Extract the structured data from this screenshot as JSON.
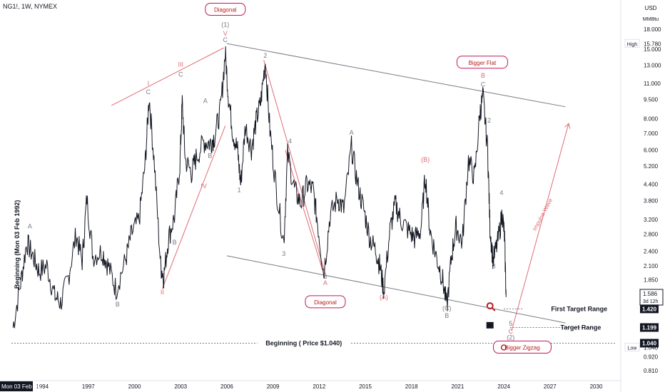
{
  "header": {
    "symbol": "NG1!, 1W, NYMEX"
  },
  "currency": {
    "unit": "USD",
    "subunit": "MMBtu"
  },
  "chart_data": {
    "type": "line",
    "scale": "log",
    "ylim": [
      0.75,
      22
    ],
    "xlim": [
      1992.0,
      2031.6
    ],
    "y_ticks": [
      18.0,
      15.0,
      13.0,
      11.0,
      9.5,
      8.0,
      7.0,
      6.0,
      5.2,
      4.4,
      3.8,
      3.2,
      2.8,
      2.4,
      2.1,
      1.85,
      0.92,
      0.81
    ],
    "y_tick_labels": [
      "18.000",
      "15.000",
      "13.000",
      "11.000",
      "9.500",
      "8.000",
      "7.000",
      "6.000",
      "5.200",
      "4.400",
      "3.800",
      "3.200",
      "2.800",
      "2.400",
      "2.100",
      "1.850",
      "0.920",
      "0.810"
    ],
    "x_ticks": [
      1994,
      1997,
      2000,
      2003,
      2006,
      2009,
      2012,
      2015,
      2018,
      2021,
      2024,
      2027,
      2030
    ],
    "x_tick_labels": [
      "1994",
      "1997",
      "2000",
      "2003",
      "2006",
      "2009",
      "2012",
      "2015",
      "2018",
      "2021",
      "2024",
      "2027",
      "2030"
    ],
    "x_start_label": "Mon 03 Feb '92",
    "price_path": [
      [
        1992.1,
        1.2
      ],
      [
        1992.6,
        1.8
      ],
      [
        1993.0,
        2.6
      ],
      [
        1993.4,
        2.3
      ],
      [
        1993.8,
        2.0
      ],
      [
        1994.3,
        2.1
      ],
      [
        1994.8,
        1.6
      ],
      [
        1995.2,
        1.5
      ],
      [
        1995.7,
        1.9
      ],
      [
        1996.2,
        2.8
      ],
      [
        1996.6,
        2.2
      ],
      [
        1996.9,
        3.9
      ],
      [
        1997.3,
        2.3
      ],
      [
        1997.9,
        2.4
      ],
      [
        1998.3,
        2.1
      ],
      [
        1998.8,
        1.7
      ],
      [
        1999.4,
        2.2
      ],
      [
        1999.8,
        2.8
      ],
      [
        2000.3,
        3.2
      ],
      [
        2000.7,
        5.4
      ],
      [
        2000.95,
        9.8
      ],
      [
        2001.3,
        5.2
      ],
      [
        2001.7,
        2.1
      ],
      [
        2001.9,
        1.9
      ],
      [
        2002.2,
        2.7
      ],
      [
        2002.6,
        3.3
      ],
      [
        2002.95,
        5.3
      ],
      [
        2003.1,
        9.3
      ],
      [
        2003.3,
        5.5
      ],
      [
        2003.7,
        4.9
      ],
      [
        2004.0,
        5.6
      ],
      [
        2004.5,
        6.5
      ],
      [
        2004.9,
        6.4
      ],
      [
        2005.2,
        6.8
      ],
      [
        2005.6,
        8.8
      ],
      [
        2005.9,
        14.6
      ],
      [
        2006.1,
        9.8
      ],
      [
        2006.4,
        7.0
      ],
      [
        2006.7,
        6.0
      ],
      [
        2006.9,
        4.4
      ],
      [
        2007.2,
        7.5
      ],
      [
        2007.6,
        6.1
      ],
      [
        2007.9,
        7.8
      ],
      [
        2008.2,
        9.3
      ],
      [
        2008.5,
        13.5
      ],
      [
        2008.8,
        7.2
      ],
      [
        2009.2,
        4.3
      ],
      [
        2009.7,
        2.6
      ],
      [
        2009.95,
        5.8
      ],
      [
        2010.4,
        4.2
      ],
      [
        2010.8,
        3.7
      ],
      [
        2011.2,
        4.4
      ],
      [
        2011.6,
        4.2
      ],
      [
        2011.9,
        3.1
      ],
      [
        2012.3,
        1.95
      ],
      [
        2012.7,
        3.3
      ],
      [
        2013.2,
        3.9
      ],
      [
        2013.6,
        3.5
      ],
      [
        2014.1,
        6.2
      ],
      [
        2014.5,
        4.4
      ],
      [
        2014.9,
        3.5
      ],
      [
        2015.3,
        2.7
      ],
      [
        2015.7,
        2.4
      ],
      [
        2015.95,
        2.1
      ],
      [
        2016.2,
        1.68
      ],
      [
        2016.6,
        2.9
      ],
      [
        2016.95,
        3.7
      ],
      [
        2017.3,
        3.2
      ],
      [
        2017.8,
        2.9
      ],
      [
        2018.2,
        2.7
      ],
      [
        2018.6,
        2.9
      ],
      [
        2018.9,
        4.8
      ],
      [
        2019.2,
        2.9
      ],
      [
        2019.6,
        2.3
      ],
      [
        2020.0,
        1.9
      ],
      [
        2020.3,
        1.45
      ],
      [
        2020.6,
        2.3
      ],
      [
        2020.9,
        3.0
      ],
      [
        2021.3,
        2.6
      ],
      [
        2021.7,
        5.5
      ],
      [
        2022.1,
        4.7
      ],
      [
        2022.45,
        8.5
      ],
      [
        2022.65,
        9.8
      ],
      [
        2022.95,
        6.0
      ],
      [
        2023.1,
        3.0
      ],
      [
        2023.3,
        2.2
      ],
      [
        2023.6,
        2.6
      ],
      [
        2023.9,
        3.4
      ],
      [
        2024.05,
        2.7
      ],
      [
        2024.15,
        1.58
      ]
    ],
    "overlay_lines": [
      {
        "from": [
          1998.5,
          9.0
        ],
        "to": [
          2005.8,
          15.2
        ],
        "color": "#e06c75"
      },
      {
        "from": [
          2001.8,
          1.7
        ],
        "to": [
          2005.9,
          7.5
        ],
        "color": "#e06c75"
      },
      {
        "from": [
          2008.4,
          13.6
        ],
        "to": [
          2012.4,
          1.95
        ],
        "color": "#e06c75"
      },
      {
        "from": [
          2009.8,
          6.0
        ],
        "to": [
          2012.3,
          1.95
        ],
        "color": "#e06c75"
      },
      {
        "from": [
          2024.5,
          1.16
        ],
        "to": [
          2028.2,
          7.6
        ],
        "color": "#e06c75",
        "arrow": true
      },
      {
        "from": [
          2006.0,
          15.8
        ],
        "to": [
          2028.0,
          8.9
        ],
        "color": "#787b86"
      },
      {
        "from": [
          2006.0,
          2.3
        ],
        "to": [
          2028.0,
          1.25
        ],
        "color": "#787b86"
      },
      {
        "from": [
          2024.0,
          1.42
        ],
        "to": [
          2025.3,
          1.42
        ],
        "color": "#787b86",
        "dash": true
      },
      {
        "from": [
          2024.4,
          1.199
        ],
        "to": [
          2029.8,
          1.199
        ],
        "color": "#787b86",
        "dash": true
      },
      {
        "from": [
          1992.0,
          1.04
        ],
        "to": [
          2031.3,
          1.04
        ],
        "color": "#787b86",
        "dash": true
      }
    ],
    "wave_labels": [
      {
        "t": "A",
        "x": 1993.2,
        "y": 2.95,
        "c": "#787b86"
      },
      {
        "t": "B",
        "x": 1998.9,
        "y": 1.45,
        "c": "#787b86"
      },
      {
        "t": "I",
        "x": 2000.9,
        "y": 10.8,
        "c": "#e06c75"
      },
      {
        "t": "C",
        "x": 2000.9,
        "y": 10.0,
        "c": "#787b86"
      },
      {
        "t": "II",
        "x": 2001.8,
        "y": 1.62,
        "c": "#e06c75"
      },
      {
        "t": "III",
        "x": 2003.0,
        "y": 12.8,
        "c": "#e06c75"
      },
      {
        "t": "C",
        "x": 2003.0,
        "y": 11.7,
        "c": "#787b86"
      },
      {
        "t": "B",
        "x": 2002.6,
        "y": 2.55,
        "c": "#787b86"
      },
      {
        "t": "A",
        "x": 2004.6,
        "y": 9.2,
        "c": "#787b86"
      },
      {
        "t": "B",
        "x": 2004.9,
        "y": 5.6,
        "c": "#787b86"
      },
      {
        "t": "IV",
        "x": 2004.5,
        "y": 4.25,
        "c": "#e06c75"
      },
      {
        "t": "(1)",
        "x": 2005.9,
        "y": 18.4,
        "c": "#787b86"
      },
      {
        "t": "V",
        "x": 2005.9,
        "y": 17.0,
        "c": "#e06c75"
      },
      {
        "t": "C",
        "x": 2005.9,
        "y": 16.0,
        "c": "#787b86"
      },
      {
        "t": "1",
        "x": 2006.8,
        "y": 4.1,
        "c": "#787b86"
      },
      {
        "t": "2",
        "x": 2008.5,
        "y": 13.9,
        "c": "#787b86"
      },
      {
        "t": "3",
        "x": 2009.7,
        "y": 2.3,
        "c": "#787b86"
      },
      {
        "t": "4",
        "x": 2010.1,
        "y": 6.4,
        "c": "#787b86"
      },
      {
        "t": "5",
        "x": 2012.4,
        "y": 1.87,
        "c": "#787b86"
      },
      {
        "t": "A",
        "x": 2012.4,
        "y": 1.76,
        "c": "#e06c75"
      },
      {
        "t": "A",
        "x": 2014.1,
        "y": 6.9,
        "c": "#787b86"
      },
      {
        "t": "(A)",
        "x": 2016.2,
        "y": 1.55,
        "c": "#e06c75"
      },
      {
        "t": "(B)",
        "x": 2018.9,
        "y": 5.4,
        "c": "#e06c75"
      },
      {
        "t": "(C)",
        "x": 2020.3,
        "y": 1.4,
        "c": "#787b86"
      },
      {
        "t": "B",
        "x": 2020.3,
        "y": 1.31,
        "c": "#787b86"
      },
      {
        "t": "B",
        "x": 2022.65,
        "y": 11.6,
        "c": "#e06c75"
      },
      {
        "t": "C",
        "x": 2022.65,
        "y": 10.7,
        "c": "#787b86"
      },
      {
        "t": "2",
        "x": 2023.05,
        "y": 7.7,
        "c": "#787b86"
      },
      {
        "t": "3",
        "x": 2023.35,
        "y": 2.05,
        "c": "#787b86"
      },
      {
        "t": "4",
        "x": 2023.85,
        "y": 4.0,
        "c": "#787b86"
      },
      {
        "t": "5",
        "x": 2024.45,
        "y": 1.22,
        "c": "#787b86"
      },
      {
        "t": "C",
        "x": 2024.45,
        "y": 1.135,
        "c": "#e06c75"
      },
      {
        "t": "(2)",
        "x": 2024.45,
        "y": 1.075,
        "c": "#787b86"
      }
    ],
    "callouts": [
      {
        "t": "Diagonal",
        "x": 2005.9,
        "y": 21.5
      },
      {
        "t": "Bigger Flat",
        "x": 2022.6,
        "y": 13.3
      },
      {
        "t": "Diagonal",
        "x": 2012.4,
        "y": 1.51
      },
      {
        "t": "Bigger Zigzag",
        "x": 2025.2,
        "y": 1.0
      }
    ],
    "annotations": [
      {
        "t": "Beginning ( Price $1.040)",
        "x": 2011.0,
        "y": 1.04
      },
      {
        "t": "First Target Range",
        "x": 2028.9,
        "y": 1.42
      },
      {
        "t": "Target Range",
        "x": 2029.0,
        "y": 1.199
      },
      {
        "t": "Impulse Wave",
        "x": 2026.5,
        "y": 3.35
      }
    ],
    "vertical_label": "Beginning (Mon 03 Feb 1992)",
    "price_badges": [
      {
        "label": "High",
        "value": "15.780",
        "y": 15.78,
        "style": "high"
      },
      {
        "label": "",
        "value": "1.586",
        "y": 1.62,
        "style": "current",
        "sub": "3d 12h"
      },
      {
        "label": "",
        "value": "1.420",
        "y": 1.42,
        "style": "dark"
      },
      {
        "label": "",
        "value": "1.199",
        "y": 1.199,
        "style": "dark"
      },
      {
        "label": "",
        "value": "1.040",
        "y": 1.04,
        "style": "dark"
      },
      {
        "label": "Low",
        "value": "1.040",
        "y": 1.0,
        "style": "low"
      }
    ]
  }
}
